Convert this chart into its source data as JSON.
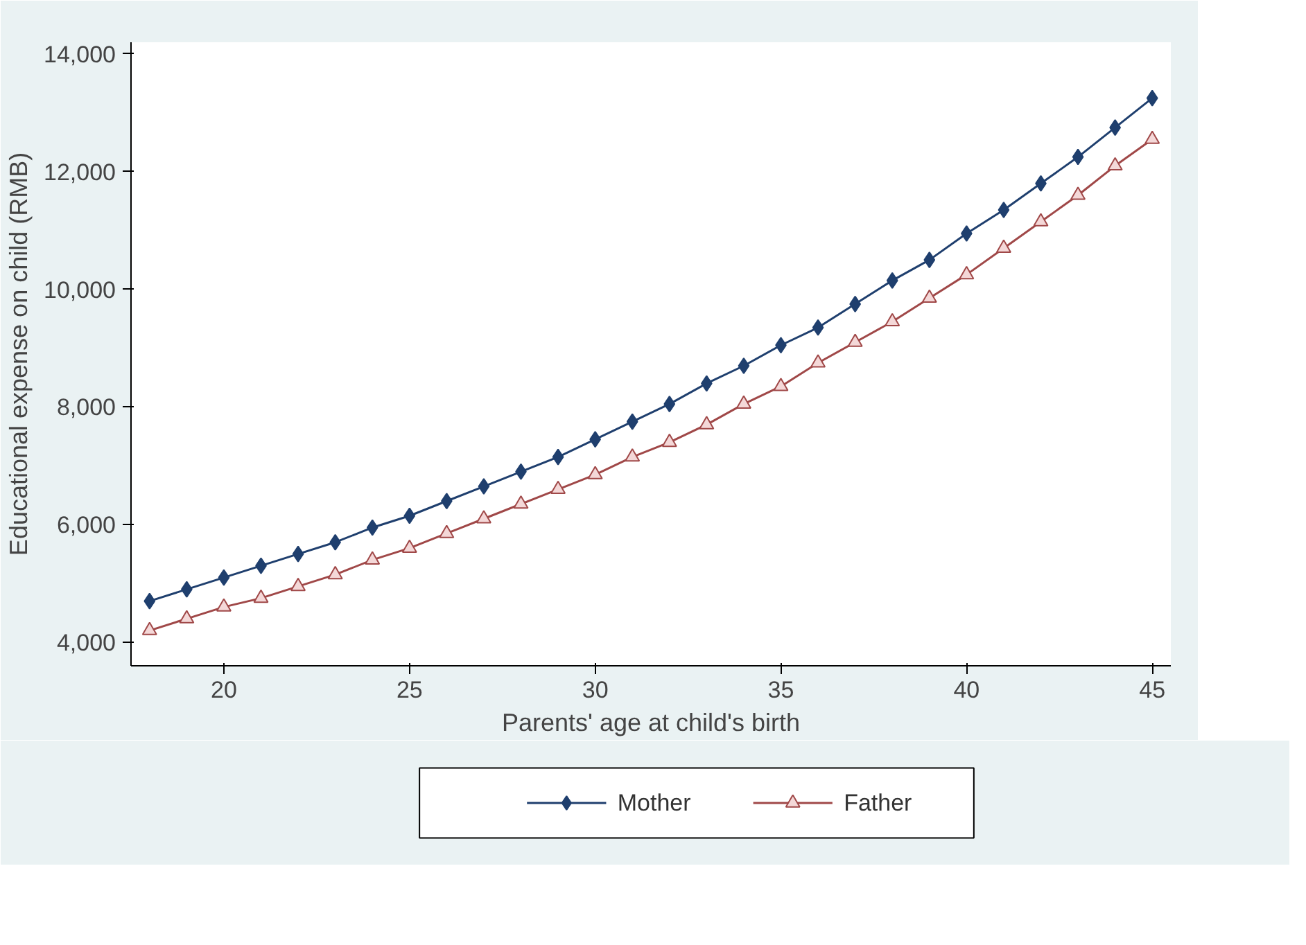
{
  "chart_data": {
    "type": "line",
    "xlabel": "Parents' age at child's birth",
    "ylabel": "Educational expense on child (RMB)",
    "x": [
      18,
      19,
      20,
      21,
      22,
      23,
      24,
      25,
      26,
      27,
      28,
      29,
      30,
      31,
      32,
      33,
      34,
      35,
      36,
      37,
      38,
      39,
      40,
      41,
      42,
      43,
      44,
      45
    ],
    "series": [
      {
        "name": "Mother",
        "color": "#1f3f6e",
        "marker": "diamond",
        "values": [
          4700,
          4900,
          5100,
          5300,
          5500,
          5700,
          5950,
          6150,
          6400,
          6650,
          6900,
          7150,
          7450,
          7750,
          8050,
          8400,
          8700,
          9050,
          9350,
          9750,
          10150,
          10500,
          10950,
          11350,
          11800,
          12250,
          12750,
          13250
        ]
      },
      {
        "name": "Father",
        "color": "#a04848",
        "marker": "triangle",
        "values": [
          4200,
          4400,
          4600,
          4750,
          4950,
          5150,
          5400,
          5600,
          5850,
          6100,
          6350,
          6600,
          6850,
          7150,
          7400,
          7700,
          8050,
          8350,
          8750,
          9100,
          9450,
          9850,
          10250,
          10700,
          11150,
          11600,
          12100,
          12550
        ]
      }
    ],
    "xlim": [
      17.5,
      45.5
    ],
    "ylim": [
      3600,
      14200
    ],
    "xticks": [
      20,
      25,
      30,
      35,
      40,
      45
    ],
    "yticks": [
      {
        "value": 4000,
        "label": "4,000"
      },
      {
        "value": 6000,
        "label": "6,000"
      },
      {
        "value": 8000,
        "label": "8,000"
      },
      {
        "value": 10000,
        "label": "10,000"
      },
      {
        "value": 12000,
        "label": "12,000"
      },
      {
        "value": 14000,
        "label": "14,000"
      }
    ],
    "grid": false,
    "legend": "bottom",
    "line_style": "solid"
  }
}
